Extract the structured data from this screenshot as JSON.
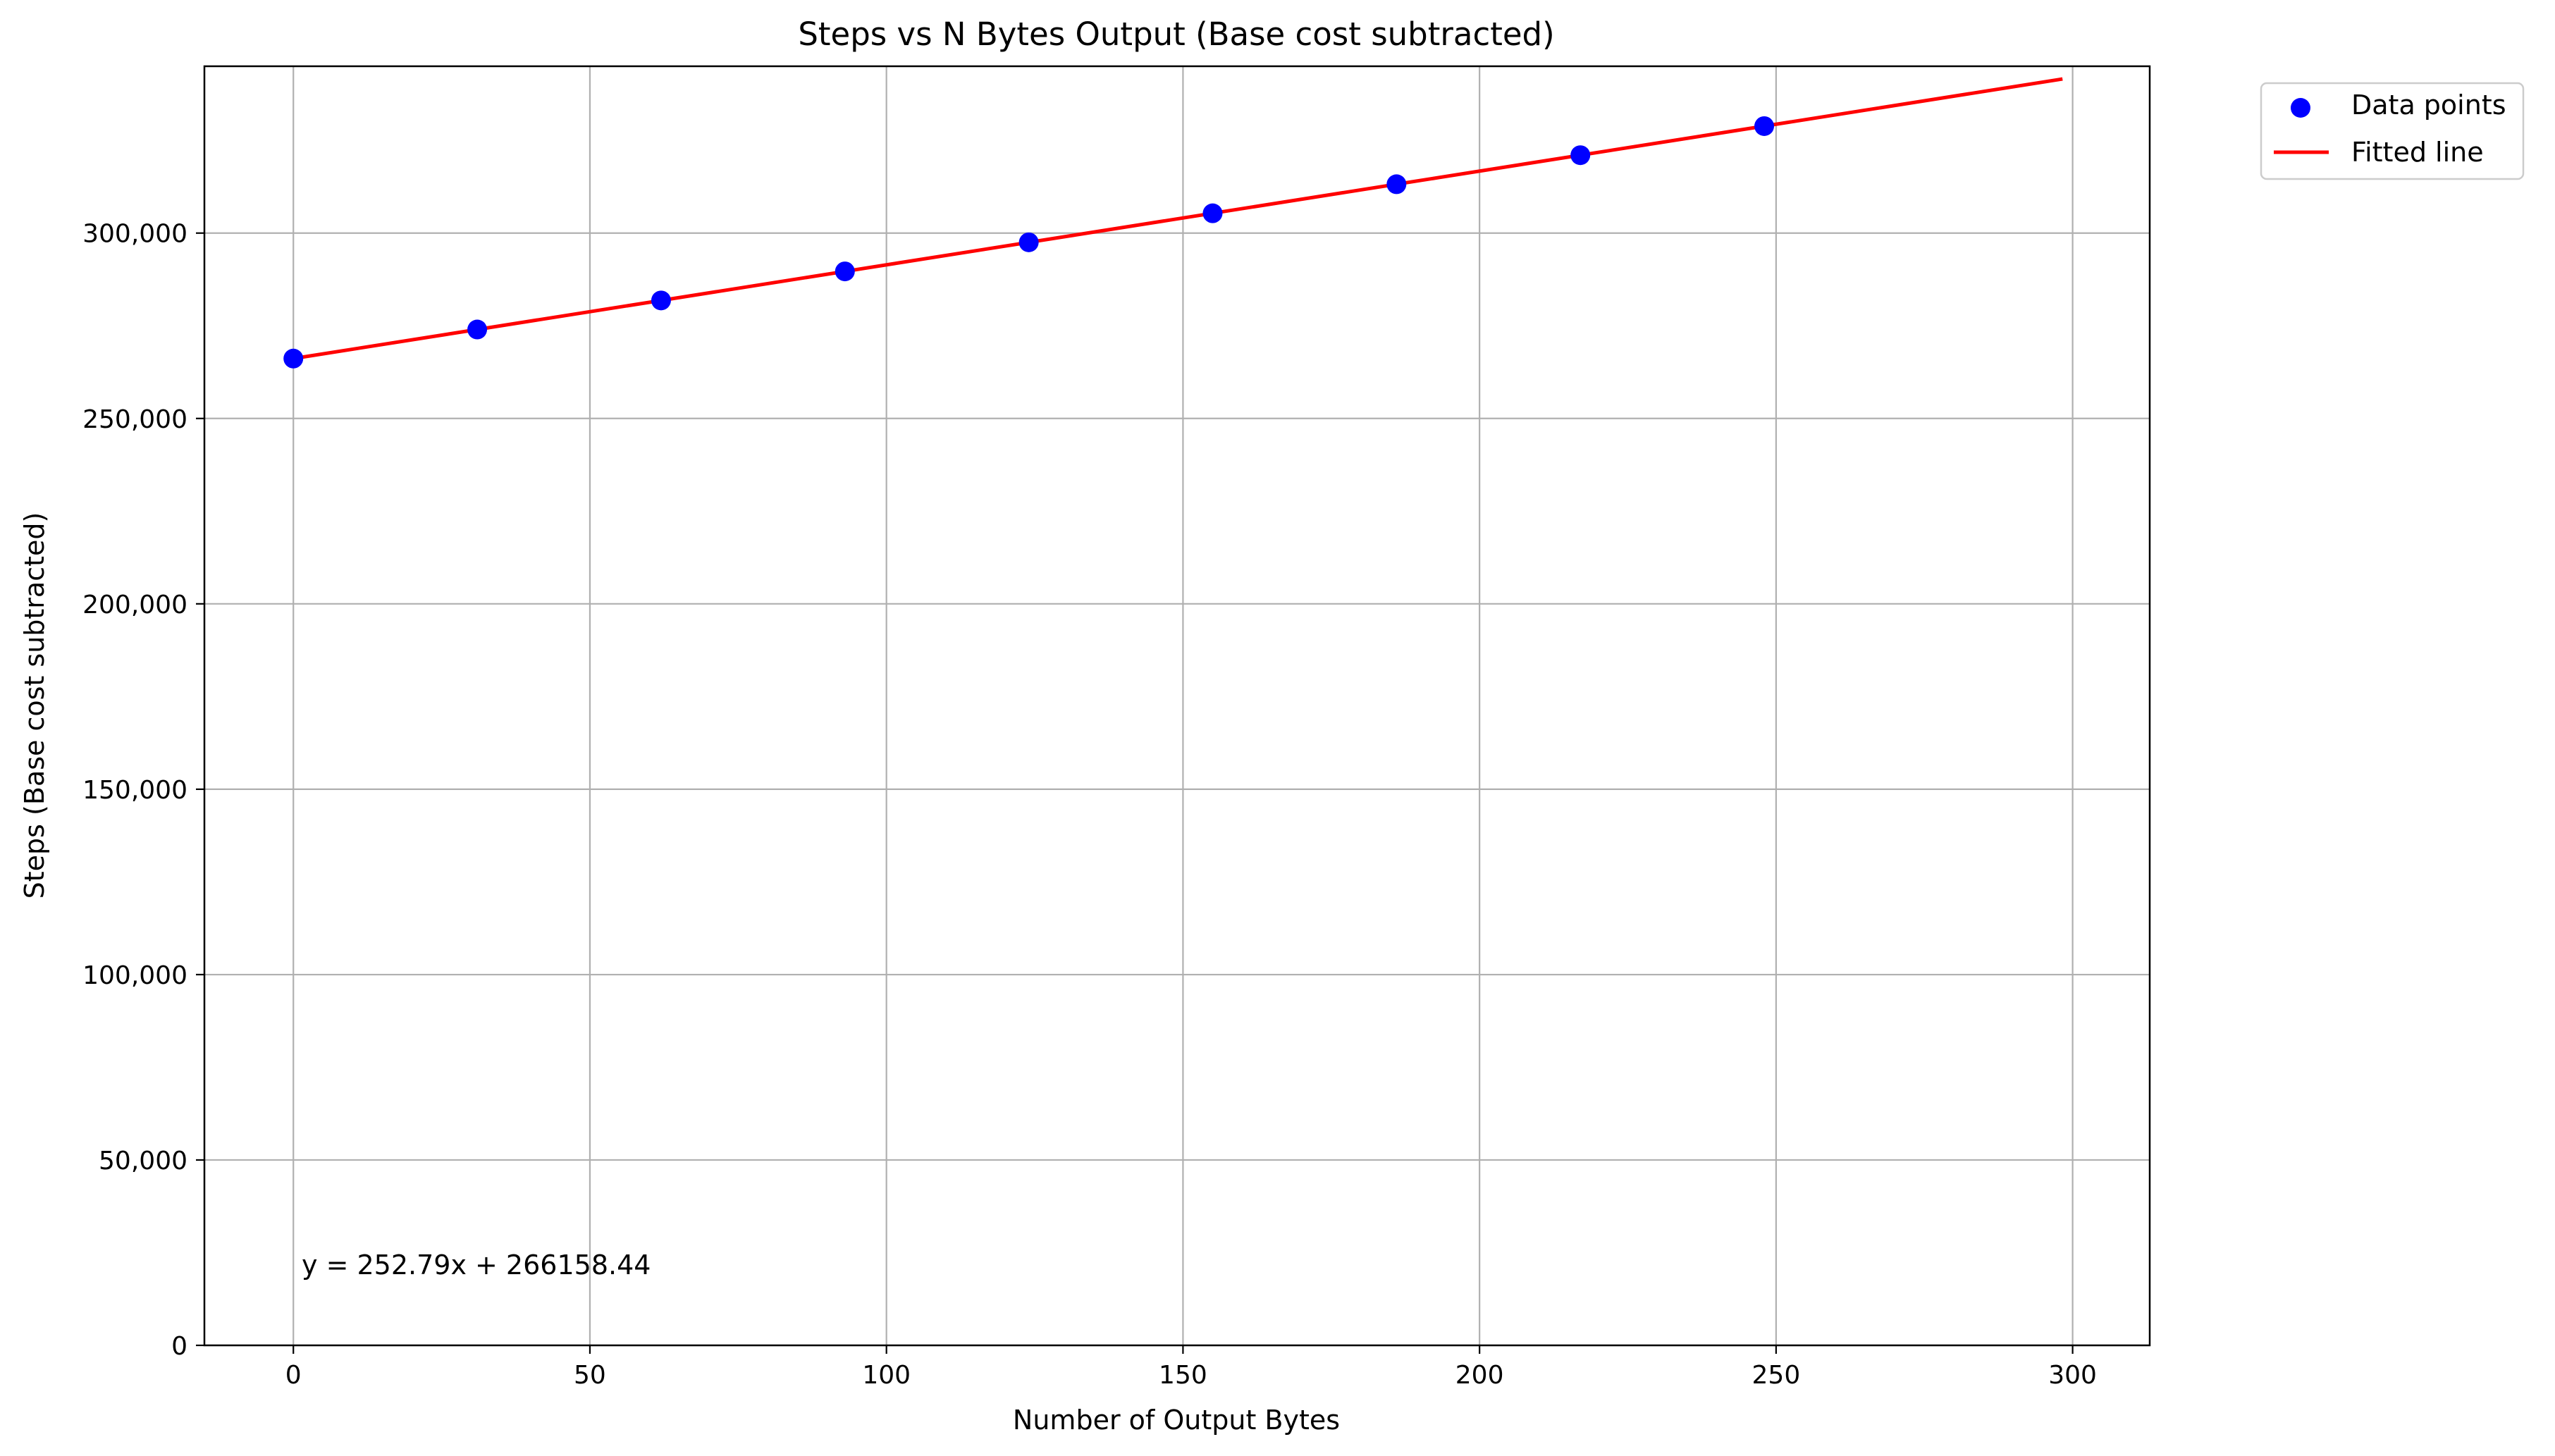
{
  "chart_data": {
    "type": "scatter",
    "title": "Steps vs N Bytes Output (Base cost subtracted)",
    "xlabel": "Number of Output Bytes",
    "ylabel": "Steps (Base cost subtracted)",
    "xlim": [
      -15,
      313
    ],
    "ylim": [
      0,
      345000
    ],
    "xticks": [
      0,
      50,
      100,
      150,
      200,
      250,
      300
    ],
    "xtick_labels": [
      "0",
      "50",
      "100",
      "150",
      "200",
      "250",
      "300"
    ],
    "yticks": [
      0,
      50000,
      100000,
      150000,
      200000,
      250000,
      300000
    ],
    "ytick_labels": [
      "0",
      "50,000",
      "100,000",
      "150,000",
      "200,000",
      "250,000",
      "300,000"
    ],
    "grid": true,
    "legend_position": "outside top-right",
    "series": [
      {
        "name": "Data points",
        "kind": "scatter",
        "color": "#0000ff",
        "x": [
          0,
          31,
          62,
          93,
          124,
          155,
          186,
          217,
          248
        ],
        "y": [
          266158,
          273995,
          281831,
          289668,
          297504,
          305340,
          313177,
          321013,
          328850
        ]
      },
      {
        "name": "Fitted line",
        "kind": "line",
        "color": "#ff0000",
        "x": [
          0,
          298
        ],
        "y": [
          266158.44,
          341489.86
        ]
      }
    ],
    "annotation": "y = 252.79x + 266158.44"
  }
}
